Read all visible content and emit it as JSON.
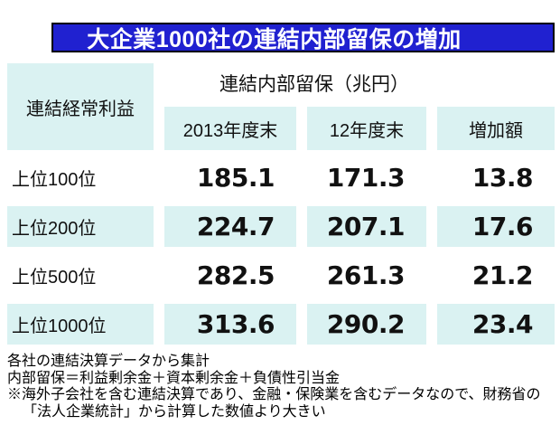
{
  "chart_data": {
    "type": "table",
    "title": "大企業1000社の連結内部留保の増加",
    "corner_header": "連結経常利益",
    "column_group_header": "連結内部留保（兆円）",
    "columns": [
      "2013年度末",
      "12年度末",
      "増加額"
    ],
    "rows": [
      {
        "label": "上位100位",
        "values": [
          185.1,
          171.3,
          13.8
        ]
      },
      {
        "label": "上位200位",
        "values": [
          224.7,
          207.1,
          17.6
        ]
      },
      {
        "label": "上位500位",
        "values": [
          282.5,
          261.3,
          21.2
        ]
      },
      {
        "label": "上位1000位",
        "values": [
          313.6,
          290.2,
          23.4
        ]
      }
    ],
    "unit": "兆円"
  },
  "footnotes": {
    "lines": [
      "各社の連結決算データから集計",
      "内部留保＝利益剰余金＋資本剰余金＋負債性引当金",
      "※海外子会社を含む連結決算であり、金融・保険業を含むデータなので、財務省の",
      "「法人企業統計」から計算した数値より大きい"
    ]
  },
  "colors": {
    "title_bg": "#2021d0",
    "title_text": "#ffffff",
    "title_border": "#000000",
    "cell_highlight": "#daf2f2",
    "body_text": "#111111"
  }
}
